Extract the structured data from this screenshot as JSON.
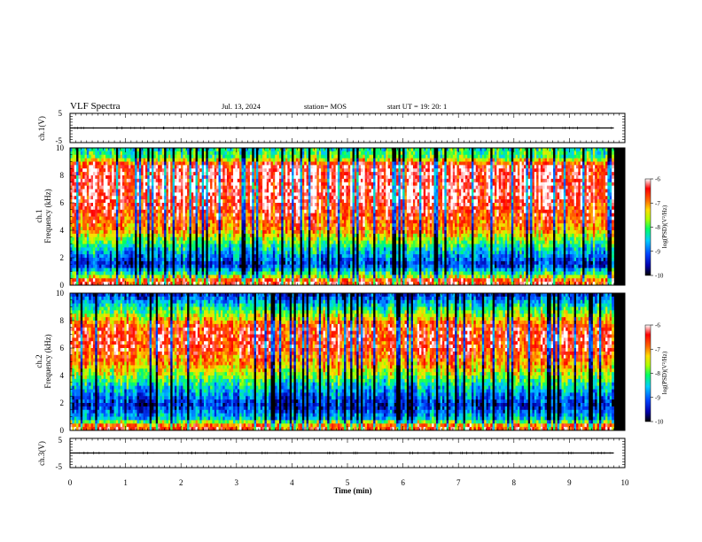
{
  "header": {
    "title": "VLF Spectra",
    "date": "Jul. 13, 2024",
    "station": "station= MOS",
    "start": "start UT = 19: 20: 1"
  },
  "chart_data": [
    {
      "type": "line",
      "panel": "ch1-waveform",
      "ylabel": "ch.1(V)",
      "yticks": [
        "5",
        "-5"
      ],
      "ylim": [
        -5,
        5
      ],
      "xlim": [
        0,
        10
      ],
      "series": [
        {
          "x": [
            0,
            9.8
          ],
          "values": [
            0,
            0
          ]
        }
      ]
    },
    {
      "type": "heatmap",
      "panel": "ch1-spectrogram",
      "ylabel": "ch.1 Frequency (kHz)",
      "ylabel_line1": "ch.1",
      "ylabel_line2": "Frequency (kHz)",
      "yticks": [
        "0",
        "2",
        "4",
        "6",
        "8",
        "10"
      ],
      "ylim": [
        0,
        10
      ],
      "xlim": [
        0,
        10
      ],
      "colorbar": {
        "label": "log(PSD)(V²/Hz)",
        "ticks": [
          "-6",
          "-7",
          "-8",
          "-9",
          "-10"
        ],
        "range": [
          -10,
          -6
        ]
      },
      "band_profile_khz": [
        {
          "f": 0.3,
          "level": -6.4
        },
        {
          "f": 0.7,
          "level": -7.8
        },
        {
          "f": 1.5,
          "level": -9.3
        },
        {
          "f": 2.8,
          "level": -8.3
        },
        {
          "f": 4.0,
          "level": -7.0
        },
        {
          "f": 6.5,
          "level": -6.2
        },
        {
          "f": 8.7,
          "level": -6.3
        },
        {
          "f": 9.3,
          "level": -7.9
        },
        {
          "f": 10.0,
          "level": -8.3
        }
      ]
    },
    {
      "type": "heatmap",
      "panel": "ch2-spectrogram",
      "ylabel": "ch.2 Frequency (kHz)",
      "ylabel_line1": "ch.2",
      "ylabel_line2": "Frequency (kHz)",
      "yticks": [
        "0",
        "2",
        "4",
        "6",
        "8",
        "10"
      ],
      "ylim": [
        0,
        10
      ],
      "xlim": [
        0,
        10
      ],
      "colorbar": {
        "label": "log(PSD)(V²/Hz)",
        "ticks": [
          "-6",
          "-7",
          "-8",
          "-9",
          "-10"
        ],
        "range": [
          -10,
          -6
        ]
      },
      "band_profile_khz": [
        {
          "f": 0.3,
          "level": -6.6
        },
        {
          "f": 0.8,
          "level": -8.5
        },
        {
          "f": 1.8,
          "level": -9.4
        },
        {
          "f": 3.2,
          "level": -8.5
        },
        {
          "f": 4.5,
          "level": -7.3
        },
        {
          "f": 6.2,
          "level": -6.5
        },
        {
          "f": 7.5,
          "level": -6.6
        },
        {
          "f": 8.7,
          "level": -8.0
        },
        {
          "f": 10.0,
          "level": -9.4
        }
      ]
    },
    {
      "type": "line",
      "panel": "ch3-waveform",
      "ylabel": "ch.3(V)",
      "yticks": [
        "5",
        "-5"
      ],
      "ylim": [
        -5,
        5
      ],
      "xlim": [
        0,
        10
      ],
      "series": [
        {
          "x": [
            0,
            9.8
          ],
          "values": [
            0,
            0
          ]
        }
      ]
    }
  ],
  "xaxis": {
    "label": "Time (min)",
    "ticks": [
      "0",
      "1",
      "2",
      "3",
      "4",
      "5",
      "6",
      "7",
      "8",
      "9",
      "10"
    ],
    "range": [
      0,
      10
    ],
    "data_end": 9.8
  },
  "colors": {
    "colormap": [
      "#000000",
      "#0000aa",
      "#0044ff",
      "#00ccff",
      "#00ff66",
      "#aaff00",
      "#ffdd00",
      "#ff6600",
      "#ff0000",
      "#ffffff"
    ]
  }
}
